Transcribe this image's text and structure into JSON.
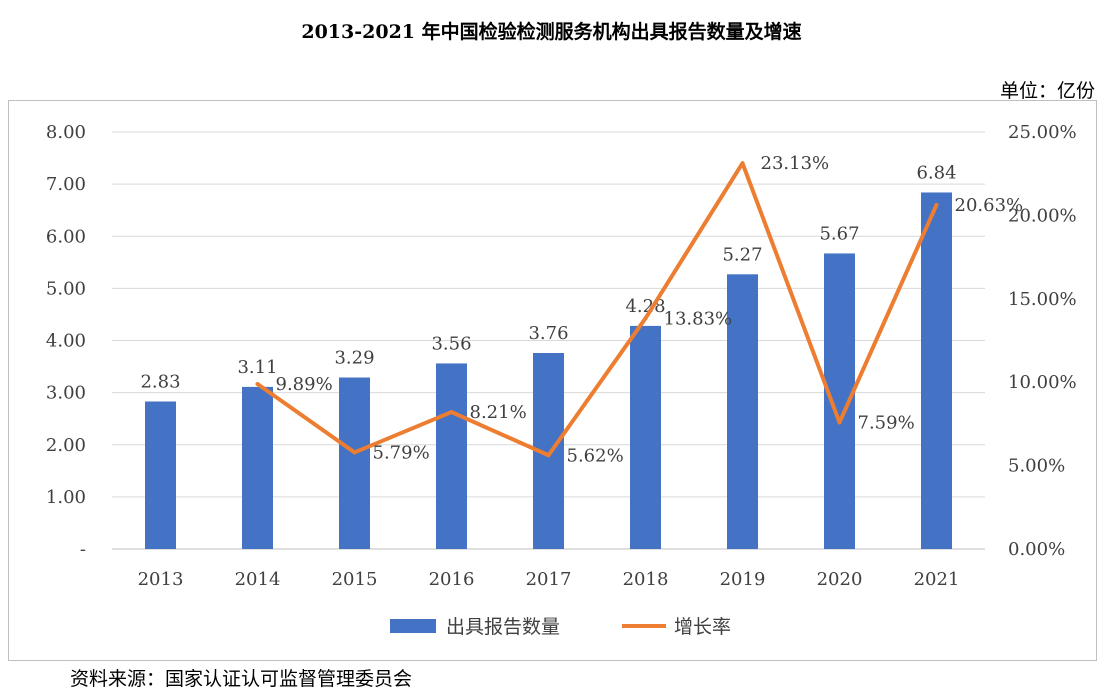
{
  "chart_title": "2013-2021 年中国检验检测服务机构出具报告数量及增速",
  "unit_label": "单位：亿份",
  "source_note": "资料来源：国家认证认可监督管理委员会",
  "chart_data": {
    "type": "bar",
    "categories": [
      "2013",
      "2014",
      "2015",
      "2016",
      "2017",
      "2018",
      "2019",
      "2020",
      "2021"
    ],
    "series": [
      {
        "name": "出具报告数量",
        "type": "bar",
        "axis": "left",
        "color": "#4472C4",
        "values": [
          2.83,
          3.11,
          3.29,
          3.56,
          3.76,
          4.28,
          5.27,
          5.67,
          6.84
        ],
        "labels": [
          "2.83",
          "3.11",
          "3.29",
          "3.56",
          "3.76",
          "4.28",
          "5.27",
          "5.67",
          "6.84"
        ]
      },
      {
        "name": "增长率",
        "type": "line",
        "axis": "right",
        "color": "#ED7D31",
        "x": [
          "2014",
          "2015",
          "2016",
          "2017",
          "2018",
          "2019",
          "2020",
          "2021"
        ],
        "values": [
          9.89,
          5.79,
          8.21,
          5.62,
          13.83,
          23.13,
          7.59,
          20.63
        ],
        "labels": [
          "9.89%",
          "5.79%",
          "8.21%",
          "5.62%",
          "13.83%",
          "23.13%",
          "7.59%",
          "20.63%"
        ]
      }
    ],
    "y_left": {
      "min": 0,
      "max": 8,
      "ticks": [
        "-",
        "1.00",
        "2.00",
        "3.00",
        "4.00",
        "5.00",
        "6.00",
        "7.00",
        "8.00"
      ]
    },
    "y_right": {
      "min": 0,
      "max": 25,
      "ticks": [
        "0.00%",
        "5.00%",
        "10.00%",
        "15.00%",
        "20.00%",
        "25.00%"
      ]
    },
    "grid": true,
    "legend": "bottom-center"
  }
}
